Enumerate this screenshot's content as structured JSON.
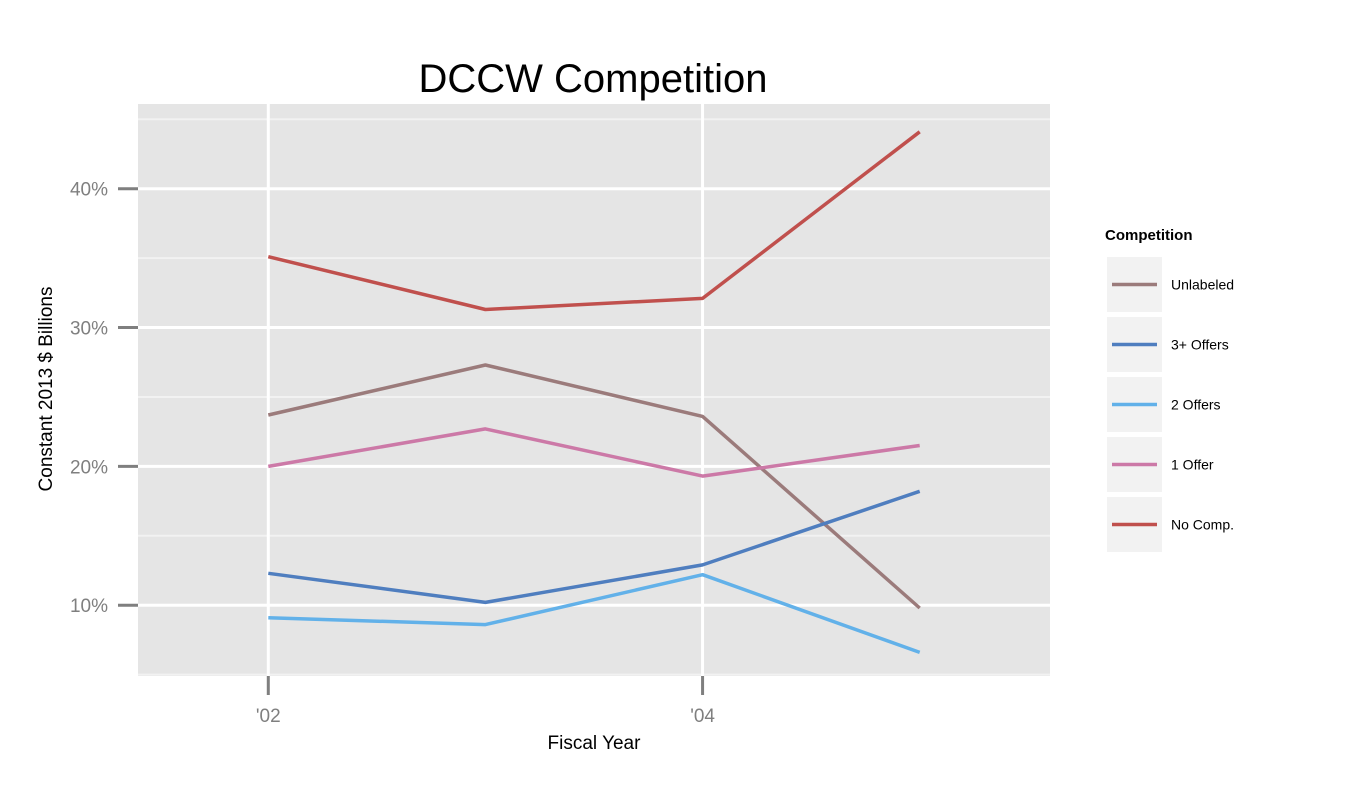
{
  "chart_data": {
    "type": "line",
    "title": "DCCW Competition",
    "xlabel": "Fiscal Year",
    "ylabel": "Constant 2013 $ Billions",
    "x": [
      2002,
      2003,
      2004,
      2005
    ],
    "x_ticks": [
      {
        "value": 2002,
        "label": "'02"
      },
      {
        "value": 2004,
        "label": "'04"
      }
    ],
    "xlim": [
      2001.4,
      2005.6
    ],
    "y_ticks": [
      {
        "value": 10,
        "label": "10%"
      },
      {
        "value": 20,
        "label": "20%"
      },
      {
        "value": 30,
        "label": "30%"
      },
      {
        "value": 40,
        "label": "40%"
      }
    ],
    "ylim": [
      4.9,
      46.1
    ],
    "grid": true,
    "legend": {
      "title": "Competition",
      "placement": "right"
    },
    "series": [
      {
        "name": "Unlabeled",
        "color": "#9b7b7b",
        "values": [
          23.7,
          27.3,
          23.6,
          9.8
        ]
      },
      {
        "name": "3+ Offers",
        "color": "#4f7ebf",
        "values": [
          12.3,
          10.2,
          12.9,
          18.2
        ]
      },
      {
        "name": "2 Offers",
        "color": "#62b1e9",
        "values": [
          9.1,
          8.6,
          12.2,
          6.6
        ]
      },
      {
        "name": "1 Offer",
        "color": "#cc79a7",
        "values": [
          20.0,
          22.7,
          19.3,
          21.5
        ]
      },
      {
        "name": "No Comp.",
        "color": "#c0504d",
        "values": [
          35.1,
          31.3,
          32.1,
          44.1
        ]
      }
    ],
    "colors": {
      "panel_background": "#e5e5e5",
      "grid_major": "#ffffff",
      "grid_minor": "#f2f2f2",
      "legend_key_background": "#f2f2f2",
      "tick_mark": "#7f7f7f"
    }
  }
}
